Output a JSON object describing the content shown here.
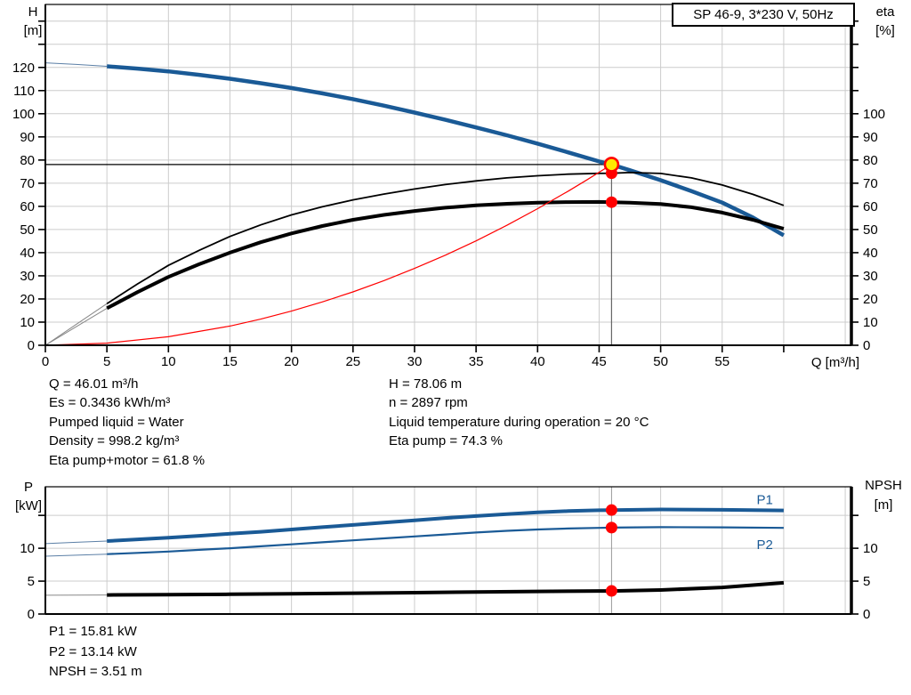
{
  "window": {
    "background": "#ffffff"
  },
  "title_box": {
    "label": "SP 46-9, 3*230 V, 50Hz"
  },
  "colors": {
    "curve_blue": "#1a5a96",
    "curve_blue_thin": "#5b7fa6",
    "curve_black": "#000000",
    "curve_black_thin": "#888888",
    "curve_red": "#ff0000",
    "marker_red": "#ff0000",
    "marker_yellow": "#ffe800",
    "grid": "#cccccc",
    "crosshair": "#000000",
    "crosshair_vertical": "#666666",
    "vline_gray": "#999999",
    "axis": "#000000",
    "label_blue": "#1a5a96"
  },
  "axis_titles": {
    "h_line1": "H",
    "h_line2": "[m]",
    "eta_line1": "eta",
    "eta_line2": "[%]",
    "q": "Q [m³/h]",
    "p_line1": "P",
    "p_line2": "[kW]",
    "npsh_line1": "NPSH",
    "npsh_line2": "[m]"
  },
  "info_left": {
    "lines": [
      "Q = 46.01 m³/h",
      "Es = 0.3436 kWh/m³",
      "Pumped liquid = Water",
      "Density = 998.2 kg/m³",
      "Eta pump+motor = 61.8 %"
    ]
  },
  "info_right": {
    "lines": [
      "H = 78.06 m",
      "n = 2897 rpm",
      "Liquid temperature during operation = 20 °C",
      "Eta pump = 74.3 %"
    ]
  },
  "info_bottom": {
    "lines": [
      "P1 = 15.81 kW",
      "P2 = 13.14 kW",
      "NPSH = 3.51 m"
    ]
  },
  "chart_data": [
    {
      "name": "hq",
      "type": "line",
      "title": "SP 46-9, 3*230 V, 50Hz",
      "xlabel": "Q [m³/h]",
      "ylabel_left": "H [m]",
      "ylabel_right": "eta [%]",
      "plot": {
        "l": 51,
        "t": 5,
        "r": 957,
        "b": 388
      },
      "x": {
        "min": 0,
        "max": 65.5,
        "grid_lines": [
          5,
          10,
          15,
          20,
          25,
          30,
          35,
          40,
          45,
          50,
          55,
          60,
          65
        ],
        "ticks": [
          0,
          5,
          10,
          15,
          20,
          25,
          30,
          35,
          40,
          45,
          50,
          55,
          60
        ],
        "labels": [
          0,
          5,
          10,
          15,
          20,
          25,
          30,
          35,
          40,
          45,
          50,
          55
        ]
      },
      "y": {
        "min": 0,
        "max": 147.2,
        "grid_lines": [
          10,
          20,
          30,
          40,
          50,
          60,
          70,
          80,
          90,
          100,
          110,
          120,
          130,
          140
        ],
        "ticks": [
          0,
          10,
          20,
          30,
          40,
          50,
          60,
          70,
          80,
          90,
          100,
          110,
          120,
          130,
          140
        ],
        "left_labels": [
          0,
          10,
          20,
          30,
          40,
          50,
          60,
          70,
          80,
          90,
          100,
          110,
          120
        ],
        "right_labels": [
          0,
          10,
          20,
          30,
          40,
          50,
          60,
          70,
          80,
          90,
          100
        ]
      },
      "crosshair": {
        "x": 46.01,
        "y": 78.06
      },
      "series": [
        {
          "name": "h-curve",
          "color_key": "curve_blue",
          "thin_color_key": "curve_blue_thin",
          "width": 4.5,
          "thin_until": 4,
          "axis": "left",
          "points": [
            [
              0,
              122
            ],
            [
              2.5,
              121.3
            ],
            [
              5,
              120.5
            ],
            [
              7.5,
              119.5
            ],
            [
              10,
              118.3
            ],
            [
              12.5,
              116.8
            ],
            [
              15,
              115.1
            ],
            [
              17.5,
              113.2
            ],
            [
              20,
              111.1
            ],
            [
              22.5,
              108.8
            ],
            [
              25,
              106.3
            ],
            [
              27.5,
              103.5
            ],
            [
              30,
              100.5
            ],
            [
              32.5,
              97.4
            ],
            [
              35,
              94.1
            ],
            [
              37.5,
              90.7
            ],
            [
              40,
              87.1
            ],
            [
              42.5,
              83.3
            ],
            [
              45,
              79.4
            ],
            [
              46.01,
              78.06
            ],
            [
              47.5,
              75.6
            ],
            [
              50,
              71.3
            ],
            [
              52.5,
              66.6
            ],
            [
              55,
              61.6
            ],
            [
              57.5,
              55.2
            ],
            [
              60,
              47.5
            ]
          ]
        },
        {
          "name": "eta-pump-curve",
          "color_key": "curve_black",
          "thin_color_key": "curve_black_thin",
          "width": 1.8,
          "thin_until": 4,
          "axis": "right",
          "points": [
            [
              0,
              0
            ],
            [
              2.5,
              9
            ],
            [
              5,
              18
            ],
            [
              7.5,
              26.5
            ],
            [
              10,
              34.5
            ],
            [
              12.5,
              41
            ],
            [
              15,
              47
            ],
            [
              17.5,
              52
            ],
            [
              20,
              56.3
            ],
            [
              22.5,
              59.8
            ],
            [
              25,
              62.8
            ],
            [
              27.5,
              65.3
            ],
            [
              30,
              67.5
            ],
            [
              32.5,
              69.4
            ],
            [
              35,
              71
            ],
            [
              37.5,
              72.3
            ],
            [
              40,
              73.2
            ],
            [
              42.5,
              73.9
            ],
            [
              45,
              74.25
            ],
            [
              46.01,
              74.3
            ],
            [
              47.5,
              74.6
            ],
            [
              50,
              74.2
            ],
            [
              52.5,
              72.3
            ],
            [
              55,
              69.2
            ],
            [
              57.5,
              65.2
            ],
            [
              60,
              60.4
            ]
          ]
        },
        {
          "name": "eta-pump-motor-curve",
          "color_key": "curve_black",
          "thin_color_key": "curve_black_thin",
          "width": 4,
          "thin_until": 4,
          "axis": "right",
          "points": [
            [
              0,
              0
            ],
            [
              2.5,
              8
            ],
            [
              5,
              16
            ],
            [
              7.5,
              23
            ],
            [
              10,
              29.5
            ],
            [
              12.5,
              35
            ],
            [
              15,
              40
            ],
            [
              17.5,
              44.5
            ],
            [
              20,
              48.3
            ],
            [
              22.5,
              51.5
            ],
            [
              25,
              54.2
            ],
            [
              27.5,
              56.3
            ],
            [
              30,
              58
            ],
            [
              32.5,
              59.4
            ],
            [
              35,
              60.4
            ],
            [
              37.5,
              61.1
            ],
            [
              40,
              61.6
            ],
            [
              42.5,
              61.85
            ],
            [
              45,
              61.9
            ],
            [
              46.01,
              61.8
            ],
            [
              47.5,
              61.6
            ],
            [
              50,
              61
            ],
            [
              52.5,
              59.6
            ],
            [
              55,
              57.3
            ],
            [
              57.5,
              54.2
            ],
            [
              60,
              50.3
            ]
          ]
        },
        {
          "name": "system-curve",
          "color_key": "curve_red",
          "width": 1.2,
          "axis": "left",
          "points": [
            [
              0,
              0
            ],
            [
              5,
              0.92
            ],
            [
              10,
              3.69
            ],
            [
              15,
              8.3
            ],
            [
              17.5,
              11.3
            ],
            [
              20,
              14.75
            ],
            [
              22.5,
              18.7
            ],
            [
              25,
              23.05
            ],
            [
              27.5,
              27.9
            ],
            [
              30,
              33.2
            ],
            [
              32.5,
              38.9
            ],
            [
              35,
              45.1
            ],
            [
              37.5,
              51.8
            ],
            [
              40,
              59
            ],
            [
              42.5,
              66.6
            ],
            [
              44,
              71.4
            ],
            [
              46.01,
              78.06
            ]
          ]
        }
      ],
      "markers": [
        {
          "name": "eta-pump-point",
          "x": 46.01,
          "y": 74.3,
          "r": 6.5,
          "fill_key": "marker_red"
        },
        {
          "name": "eta-pump-motor-point",
          "x": 46.01,
          "y": 61.8,
          "r": 6.5,
          "fill_key": "marker_red"
        },
        {
          "name": "duty-point",
          "x": 46.01,
          "y": 78.06,
          "r": 7.5,
          "fill_key": "marker_yellow",
          "stroke_key": "marker_red",
          "sw": 2.6
        }
      ]
    },
    {
      "name": "power-npsh",
      "type": "line",
      "xlabel": "Q [m³/h]",
      "ylabel_left": "P [kW]",
      "ylabel_right": "NPSH [m]",
      "plot": {
        "l": 51,
        "t": 547,
        "r": 957,
        "b": 690
      },
      "x": {
        "min": 0,
        "max": 65.5,
        "grid_lines": [
          5,
          10,
          15,
          20,
          25,
          30,
          35,
          40,
          45,
          50,
          55,
          60,
          65
        ],
        "ticks": [],
        "labels": []
      },
      "y": {
        "min": 0,
        "max": 19.35,
        "grid_lines": [
          5,
          10,
          15
        ],
        "ticks": [
          0,
          5,
          10,
          15
        ],
        "left_labels": [
          0,
          5,
          10
        ],
        "right_labels": [
          0,
          5,
          10
        ]
      },
      "vline": 46.01,
      "series": [
        {
          "name": "p1-curve",
          "color_key": "curve_blue",
          "thin_color_key": "curve_blue_thin",
          "width": 4,
          "thin_until": 4,
          "axis": "left",
          "label": {
            "x": 57.8,
            "y": 16.7,
            "text": "P1"
          },
          "points": [
            [
              0,
              10.7
            ],
            [
              2.5,
              10.9
            ],
            [
              5,
              11.1
            ],
            [
              7.5,
              11.35
            ],
            [
              10,
              11.6
            ],
            [
              12.5,
              11.9
            ],
            [
              15,
              12.2
            ],
            [
              17.5,
              12.5
            ],
            [
              20,
              12.85
            ],
            [
              22.5,
              13.2
            ],
            [
              25,
              13.55
            ],
            [
              27.5,
              13.9
            ],
            [
              30,
              14.25
            ],
            [
              32.5,
              14.6
            ],
            [
              35,
              14.9
            ],
            [
              37.5,
              15.2
            ],
            [
              40,
              15.45
            ],
            [
              42.5,
              15.65
            ],
            [
              45,
              15.78
            ],
            [
              46.01,
              15.81
            ],
            [
              50,
              15.9
            ],
            [
              55,
              15.85
            ],
            [
              60,
              15.75
            ]
          ]
        },
        {
          "name": "p2-curve",
          "color_key": "curve_blue",
          "thin_color_key": "curve_blue_thin",
          "width": 2.2,
          "thin_until": 4,
          "axis": "left",
          "label": {
            "x": 57.8,
            "y": 9.9,
            "text": "P2"
          },
          "points": [
            [
              0,
              8.8
            ],
            [
              2.5,
              8.95
            ],
            [
              5,
              9.1
            ],
            [
              7.5,
              9.3
            ],
            [
              10,
              9.5
            ],
            [
              12.5,
              9.75
            ],
            [
              15,
              10.0
            ],
            [
              17.5,
              10.3
            ],
            [
              20,
              10.6
            ],
            [
              22.5,
              10.9
            ],
            [
              25,
              11.2
            ],
            [
              27.5,
              11.5
            ],
            [
              30,
              11.8
            ],
            [
              32.5,
              12.1
            ],
            [
              35,
              12.4
            ],
            [
              37.5,
              12.65
            ],
            [
              40,
              12.85
            ],
            [
              42.5,
              13.0
            ],
            [
              45,
              13.1
            ],
            [
              46.01,
              13.14
            ],
            [
              50,
              13.2
            ],
            [
              55,
              13.18
            ],
            [
              60,
              13.1
            ]
          ]
        },
        {
          "name": "npsh-curve",
          "color_key": "curve_black",
          "thin_color_key": "curve_black_thin",
          "width": 4,
          "thin_until": 4,
          "axis": "right",
          "points": [
            [
              0,
              2.85
            ],
            [
              5,
              2.9
            ],
            [
              10,
              2.95
            ],
            [
              15,
              3.0
            ],
            [
              20,
              3.08
            ],
            [
              25,
              3.16
            ],
            [
              30,
              3.25
            ],
            [
              35,
              3.36
            ],
            [
              40,
              3.44
            ],
            [
              45,
              3.5
            ],
            [
              46.01,
              3.51
            ],
            [
              50,
              3.65
            ],
            [
              55,
              4.05
            ],
            [
              60,
              4.75
            ]
          ]
        }
      ],
      "markers": [
        {
          "name": "p1-point",
          "x": 46.01,
          "y": 15.81,
          "r": 6.5,
          "fill_key": "marker_red"
        },
        {
          "name": "p2-point",
          "x": 46.01,
          "y": 13.14,
          "r": 6.5,
          "fill_key": "marker_red"
        },
        {
          "name": "npsh-point",
          "x": 46.01,
          "y": 3.51,
          "r": 6.5,
          "fill_key": "marker_red"
        }
      ]
    }
  ]
}
